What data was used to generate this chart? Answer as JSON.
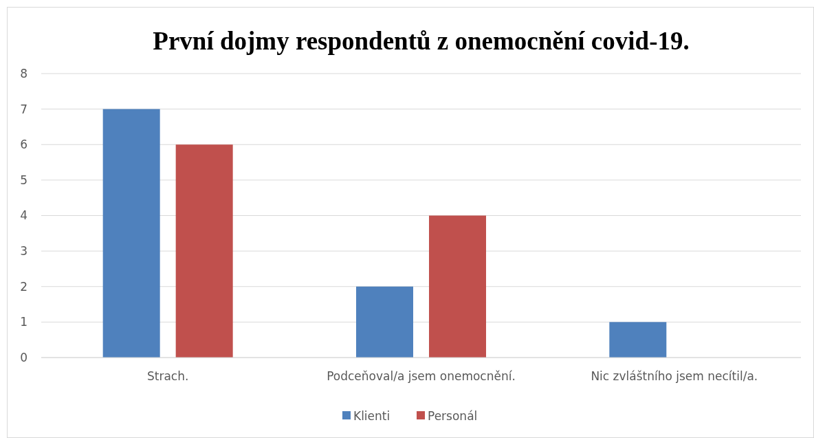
{
  "chart_data": {
    "type": "bar",
    "title": "První dojmy respondentů z onemocnění covid-19.",
    "categories": [
      "Strach.",
      "Podceňoval/a jsem onemocnění.",
      "Nic zvláštního jsem necítil/a."
    ],
    "series": [
      {
        "name": "Klienti",
        "color": "#4f81bd",
        "values": [
          7,
          2,
          1
        ]
      },
      {
        "name": "Personál",
        "color": "#c0504d",
        "values": [
          6,
          4,
          0
        ]
      }
    ],
    "ylim": [
      0,
      8
    ],
    "yticks": [
      0,
      1,
      2,
      3,
      4,
      5,
      6,
      7,
      8
    ],
    "grid": "y",
    "legend": "bottom"
  }
}
